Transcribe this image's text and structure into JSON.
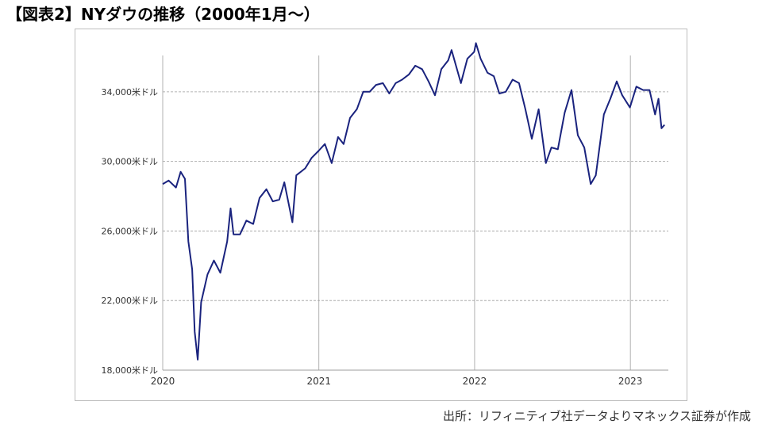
{
  "title": "【図表2】NYダウの推移（2000年1月〜）",
  "source": "出所：リフィニティブ社データよりマネックス証券が作成",
  "chart_data": {
    "type": "line",
    "title": "【図表2】NYダウの推移（2000年1月〜）",
    "xlabel": "",
    "ylabel": "",
    "x_ticks": [
      "2020",
      "2021",
      "2022",
      "2023"
    ],
    "y_ticks": [
      "18,000米ドル",
      "22,000米ドル",
      "26,000米ドル",
      "30,000米ドル",
      "34,000米ドル"
    ],
    "ylim": [
      18000,
      37000
    ],
    "xlim": [
      "2020-01-01",
      "2023-03-31"
    ],
    "grid": "horizontal dashed, vertical solid at year boundaries",
    "line_color": "#1a237e",
    "series": [
      {
        "name": "",
        "x": [
          "2020-01-01",
          "2020-01-15",
          "2020-02-01",
          "2020-02-12",
          "2020-02-22",
          "2020-03-01",
          "2020-03-10",
          "2020-03-16",
          "2020-03-23",
          "2020-03-31",
          "2020-04-15",
          "2020-04-30",
          "2020-05-15",
          "2020-05-31",
          "2020-06-08",
          "2020-06-15",
          "2020-06-30",
          "2020-07-15",
          "2020-07-31",
          "2020-08-15",
          "2020-08-31",
          "2020-09-15",
          "2020-09-30",
          "2020-10-12",
          "2020-10-31",
          "2020-11-09",
          "2020-11-30",
          "2020-12-15",
          "2020-12-31",
          "2021-01-15",
          "2021-01-31",
          "2021-02-15",
          "2021-02-28",
          "2021-03-15",
          "2021-03-31",
          "2021-04-15",
          "2021-04-30",
          "2021-05-15",
          "2021-05-31",
          "2021-06-15",
          "2021-06-30",
          "2021-07-15",
          "2021-07-31",
          "2021-08-15",
          "2021-08-31",
          "2021-09-15",
          "2021-09-30",
          "2021-10-15",
          "2021-10-31",
          "2021-11-08",
          "2021-11-30",
          "2021-12-15",
          "2021-12-31",
          "2022-01-04",
          "2022-01-15",
          "2022-01-31",
          "2022-02-15",
          "2022-02-28",
          "2022-03-15",
          "2022-03-31",
          "2022-04-15",
          "2022-04-30",
          "2022-05-15",
          "2022-05-31",
          "2022-06-17",
          "2022-06-30",
          "2022-07-15",
          "2022-07-31",
          "2022-08-16",
          "2022-08-31",
          "2022-09-15",
          "2022-09-30",
          "2022-10-12",
          "2022-10-31",
          "2022-11-15",
          "2022-11-30",
          "2022-12-13",
          "2022-12-31",
          "2023-01-15",
          "2023-01-31",
          "2023-02-15",
          "2023-02-28",
          "2023-03-08",
          "2023-03-15",
          "2023-03-22"
        ],
        "values": [
          28700,
          28900,
          28500,
          29400,
          29000,
          25400,
          23800,
          20200,
          18600,
          21900,
          23500,
          24300,
          23600,
          25400,
          27300,
          25800,
          25800,
          26600,
          26400,
          27900,
          28400,
          27700,
          27800,
          28800,
          26500,
          29200,
          29600,
          30200,
          30600,
          31000,
          29900,
          31400,
          31000,
          32500,
          33000,
          34000,
          34000,
          34400,
          34500,
          33900,
          34500,
          34700,
          35000,
          35500,
          35300,
          34600,
          33800,
          35300,
          35800,
          36400,
          34500,
          35900,
          36300,
          36800,
          35900,
          35100,
          34900,
          33900,
          34000,
          34700,
          34500,
          33000,
          31300,
          33000,
          29900,
          30800,
          30700,
          32800,
          34100,
          31500,
          30800,
          28700,
          29200,
          32700,
          33600,
          34600,
          33800,
          33100,
          34300,
          34100,
          34100,
          32700,
          33600,
          31900,
          32100
        ]
      }
    ]
  }
}
